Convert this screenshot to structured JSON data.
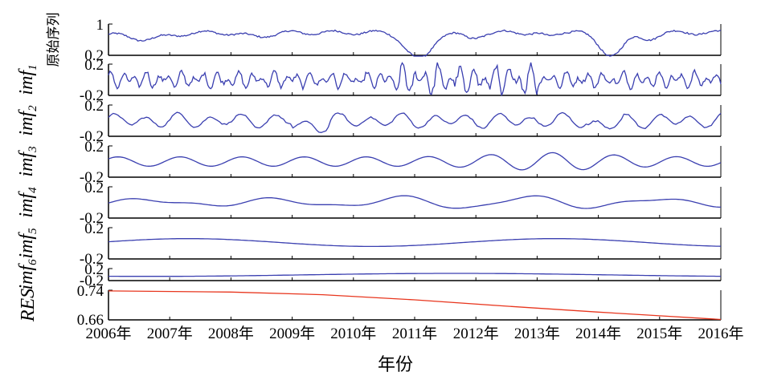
{
  "chart_data": {
    "type": "line",
    "xlabel": "年份",
    "x_ticks": [
      "2006年",
      "2007年",
      "2008年",
      "2009年",
      "2010年",
      "2011年",
      "2012年",
      "2013年",
      "2014年",
      "2015年",
      "2016年"
    ],
    "x_range": [
      2006,
      2016
    ],
    "panels": [
      {
        "ylabel": "原始序列",
        "ylabel_sub": "",
        "ylim": [
          0.2,
          1
        ],
        "ytick_labels": [
          "1",
          "0.2"
        ],
        "color": "#3a3fb0",
        "kind": "original"
      },
      {
        "ylabel": "imf",
        "ylabel_sub": "1",
        "ylim": [
          -0.2,
          0.2
        ],
        "ytick_labels": [
          "0.2",
          "-0.2"
        ],
        "color": "#3a3fb0",
        "kind": "imf1"
      },
      {
        "ylabel": "imf",
        "ylabel_sub": "2",
        "ylim": [
          -0.2,
          0.2
        ],
        "ytick_labels": [
          "0.2",
          "-0.2"
        ],
        "color": "#3a3fb0",
        "kind": "imf2"
      },
      {
        "ylabel": "imf",
        "ylabel_sub": "3",
        "ylim": [
          -0.2,
          0.2
        ],
        "ytick_labels": [
          "0.2",
          "-0.2"
        ],
        "color": "#3a3fb0",
        "kind": "imf3"
      },
      {
        "ylabel": "imf",
        "ylabel_sub": "4",
        "ylim": [
          -0.2,
          0.2
        ],
        "ytick_labels": [
          "0.2",
          "-0.2"
        ],
        "color": "#3a3fb0",
        "kind": "imf4"
      },
      {
        "ylabel": "imf",
        "ylabel_sub": "5",
        "ylim": [
          -0.2,
          0.2
        ],
        "ytick_labels": [
          "0.2",
          "-0.2"
        ],
        "color": "#3a3fb0",
        "kind": "imf5"
      },
      {
        "ylabel": "imf",
        "ylabel_sub": "6",
        "ylim": [
          -0.2,
          0.2
        ],
        "ytick_labels": [
          "0.2",
          "-0.2"
        ],
        "color": "#3a3fb0",
        "kind": "imf6"
      },
      {
        "ylabel": "RES",
        "ylabel_sub": "",
        "ylim": [
          0.66,
          0.74
        ],
        "ytick_labels": [
          "0.74",
          "0.66"
        ],
        "color": "#e8361e",
        "kind": "res",
        "x": [
          2006,
          2008,
          2009.5,
          2011,
          2012.5,
          2014,
          2015,
          2016
        ],
        "y": [
          0.738,
          0.735,
          0.728,
          0.714,
          0.697,
          0.681,
          0.671,
          0.661
        ]
      }
    ]
  }
}
